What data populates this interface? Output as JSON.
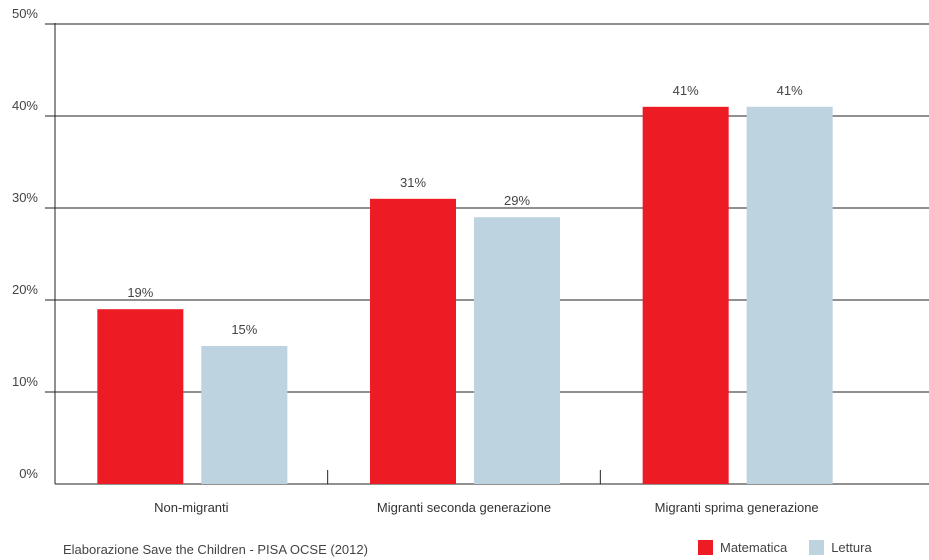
{
  "chart_data": {
    "type": "bar",
    "categories": [
      "Non-migranti",
      "Migranti seconda generazione",
      "Migranti sprima generazione"
    ],
    "series": [
      {
        "name": "Matematica",
        "values": [
          19,
          31,
          41
        ],
        "labels": [
          "19%",
          "31%",
          "41%"
        ],
        "color": "#ed1c24"
      },
      {
        "name": "Lettura",
        "values": [
          15,
          29,
          41
        ],
        "labels": [
          "15%",
          "29%",
          "41%"
        ],
        "color": "#bdd3df"
      }
    ],
    "ylim": [
      0,
      50
    ],
    "yticks": [
      0,
      10,
      20,
      30,
      40,
      50
    ],
    "ytick_labels": [
      "0%",
      "10%",
      "20%",
      "30%",
      "40%",
      "50%"
    ],
    "title": "",
    "xlabel": "",
    "ylabel": "",
    "grid": true,
    "legend_position": "bottom-right"
  },
  "source": "Elaborazione Save the Children - PISA OCSE (2012)"
}
